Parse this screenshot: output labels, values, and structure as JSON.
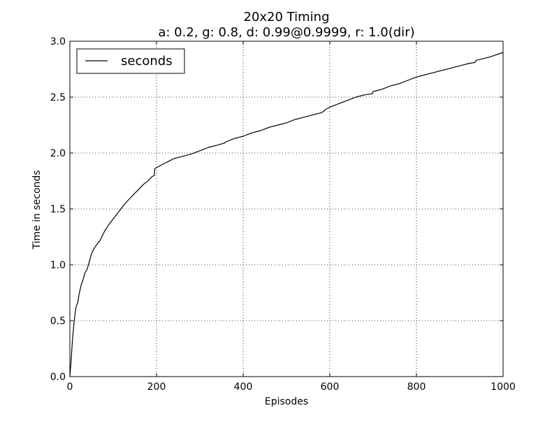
{
  "chart_data": {
    "type": "line",
    "title": "20x20 Timing",
    "subtitle": "a: 0.2, g: 0.8, d: 0.99@0.9999, r: 1.0(dir)",
    "xlabel": "Episodes",
    "ylabel": "Time in seconds",
    "xlim": [
      0,
      1000
    ],
    "ylim": [
      0,
      3.0
    ],
    "xticks": [
      0,
      200,
      400,
      600,
      800,
      1000
    ],
    "xtick_labels": [
      "0",
      "200",
      "400",
      "600",
      "800",
      "1000"
    ],
    "yticks": [
      0,
      0.5,
      1.0,
      1.5,
      2.0,
      2.5,
      3.0
    ],
    "ytick_labels": [
      "0.0",
      "0.5",
      "1.0",
      "1.5",
      "2.0",
      "2.5",
      "3.0"
    ],
    "grid": true,
    "legend_position": "top-left",
    "series": [
      {
        "name": "seconds",
        "color": "#000000",
        "x": [
          0,
          3,
          6,
          10,
          14,
          18,
          22,
          26,
          30,
          35,
          40,
          45,
          50,
          55,
          60,
          70,
          80,
          90,
          100,
          110,
          120,
          130,
          140,
          150,
          160,
          170,
          180,
          190,
          195,
          196,
          200,
          210,
          220,
          230,
          240,
          250,
          260,
          270,
          280,
          300,
          320,
          340,
          358,
          360,
          380,
          400,
          420,
          440,
          460,
          480,
          500,
          520,
          540,
          560,
          580,
          585,
          590,
          600,
          620,
          640,
          660,
          680,
          698,
          700,
          720,
          740,
          760,
          780,
          800,
          820,
          840,
          860,
          880,
          900,
          920,
          935,
          938,
          950,
          970,
          1000
        ],
        "y": [
          0.0,
          0.15,
          0.33,
          0.5,
          0.62,
          0.66,
          0.75,
          0.82,
          0.86,
          0.93,
          0.96,
          1.03,
          1.1,
          1.14,
          1.17,
          1.22,
          1.3,
          1.36,
          1.41,
          1.46,
          1.51,
          1.56,
          1.6,
          1.64,
          1.68,
          1.72,
          1.75,
          1.79,
          1.8,
          1.86,
          1.87,
          1.89,
          1.91,
          1.93,
          1.95,
          1.96,
          1.97,
          1.98,
          1.99,
          2.02,
          2.05,
          2.07,
          2.09,
          2.1,
          2.13,
          2.15,
          2.18,
          2.2,
          2.23,
          2.25,
          2.27,
          2.3,
          2.32,
          2.34,
          2.36,
          2.37,
          2.39,
          2.41,
          2.44,
          2.47,
          2.5,
          2.52,
          2.53,
          2.55,
          2.57,
          2.6,
          2.62,
          2.65,
          2.68,
          2.7,
          2.72,
          2.74,
          2.76,
          2.78,
          2.8,
          2.81,
          2.83,
          2.84,
          2.86,
          2.9
        ]
      }
    ]
  }
}
